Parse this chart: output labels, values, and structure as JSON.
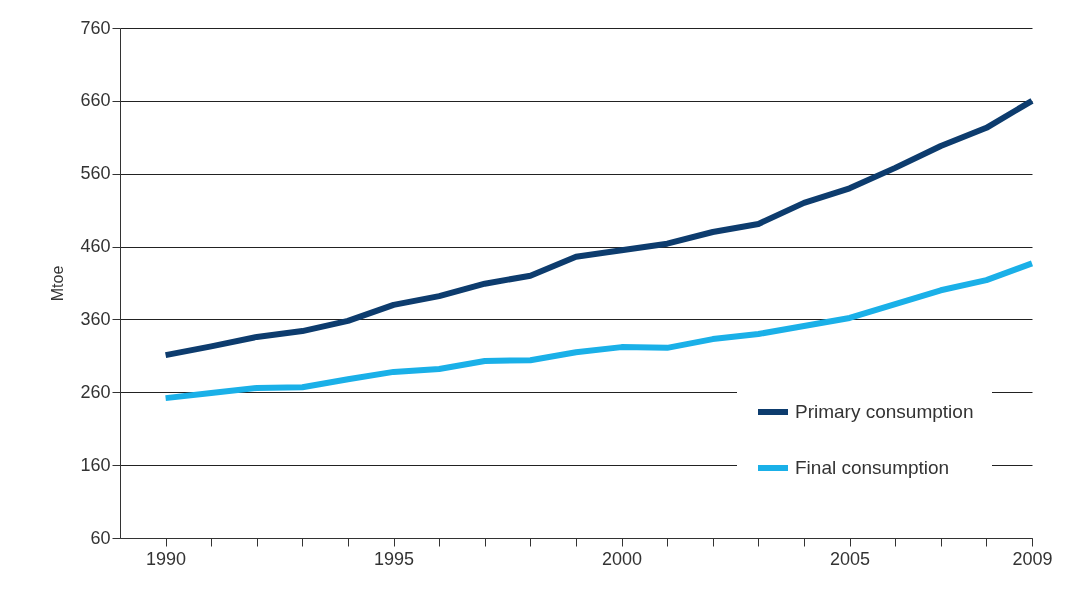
{
  "chart_data": {
    "type": "line",
    "ylabel": "Mtoe",
    "x": [
      1990,
      1991,
      1992,
      1993,
      1994,
      1995,
      1996,
      1997,
      1998,
      1999,
      2000,
      2001,
      2002,
      2003,
      2004,
      2005,
      2006,
      2007,
      2008,
      2009
    ],
    "series": [
      {
        "name": "Primary consumption",
        "color": "#0d3c6e",
        "values": [
          311,
          323,
          336,
          344,
          358,
          380,
          392,
          409,
          420,
          446,
          455,
          464,
          480,
          491,
          520,
          540,
          568,
          598,
          623,
          660
        ]
      },
      {
        "name": "Final consumption",
        "color": "#1ab0e8",
        "values": [
          252,
          259,
          266,
          267,
          278,
          288,
          292,
          303,
          304,
          315,
          322,
          321,
          333,
          340,
          351,
          362,
          381,
          400,
          414,
          437
        ]
      }
    ],
    "xlim": [
      1989,
      2009
    ],
    "xticks": [
      1990,
      {
        "value": 1991,
        "label": null
      },
      {
        "value": 1992,
        "label": null
      },
      {
        "value": 1993,
        "label": null
      },
      {
        "value": 1994,
        "label": null
      },
      1995,
      {
        "value": 1996,
        "label": null
      },
      {
        "value": 1997,
        "label": null
      },
      {
        "value": 1998,
        "label": null
      },
      {
        "value": 1999,
        "label": null
      },
      2000,
      {
        "value": 2001,
        "label": null
      },
      {
        "value": 2002,
        "label": null
      },
      {
        "value": 2003,
        "label": null
      },
      {
        "value": 2004,
        "label": null
      },
      2005,
      {
        "value": 2006,
        "label": null
      },
      {
        "value": 2007,
        "label": null
      },
      {
        "value": 2008,
        "label": null
      },
      2009
    ],
    "ylim": [
      60,
      760
    ],
    "yticks": [
      60,
      160,
      260,
      360,
      460,
      560,
      660,
      760
    ],
    "grid": "y",
    "legend": "bottom right",
    "line_style": "solid"
  }
}
